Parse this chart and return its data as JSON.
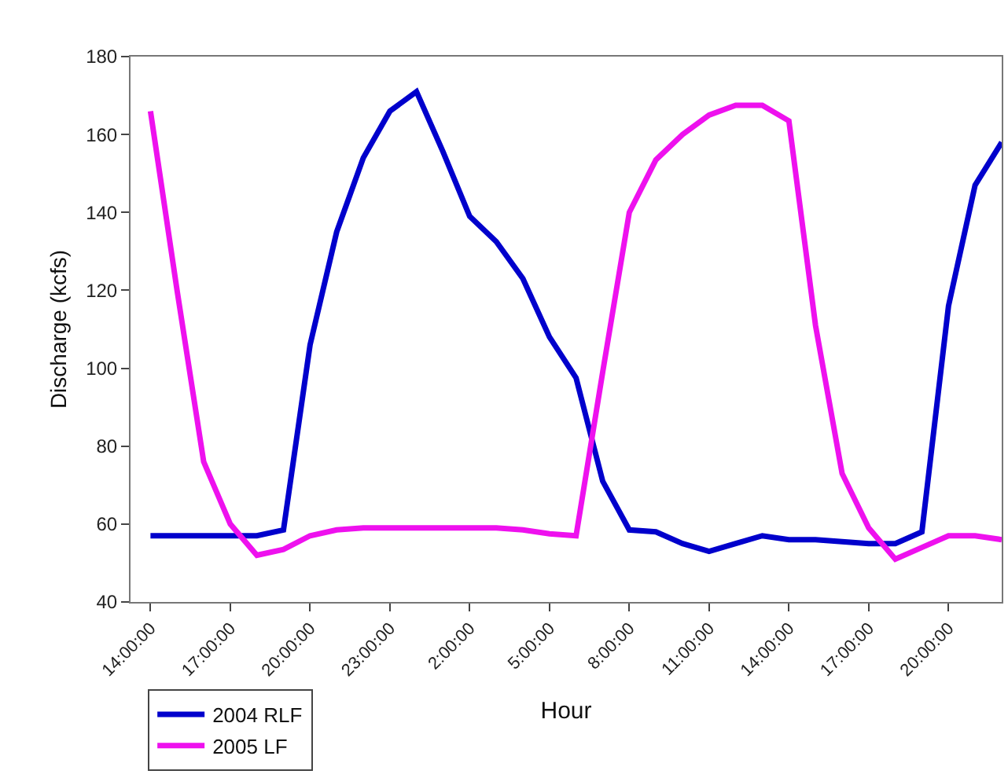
{
  "chart_data": {
    "type": "line",
    "xlabel": "Hour",
    "ylabel": "Discharge (kcfs)",
    "categories": [
      "14:00:00",
      null,
      null,
      "17:00:00",
      null,
      null,
      "20:00:00",
      null,
      null,
      "23:00:00",
      null,
      null,
      "2:00:00",
      null,
      null,
      "5:00:00",
      null,
      null,
      "8:00:00",
      null,
      null,
      "11:00:00",
      null,
      null,
      "14:00:00",
      null,
      null,
      "17:00:00",
      null,
      null,
      "20:00:00",
      null,
      null
    ],
    "series": [
      {
        "name": "2004 RLF",
        "color": "#0000cc",
        "values": [
          57,
          57,
          57,
          57,
          57,
          58.5,
          106,
          135,
          154,
          166,
          171,
          155.5,
          139,
          132.5,
          123,
          108,
          97.5,
          71,
          58.5,
          58,
          55,
          53,
          55,
          57,
          56,
          56,
          55.5,
          55,
          55,
          58,
          116,
          147,
          158
        ]
      },
      {
        "name": "2005 LF",
        "color": "#ee11ee",
        "values": [
          166,
          120,
          76,
          60,
          52,
          53.5,
          57,
          58.5,
          59,
          59,
          59,
          59,
          59,
          59,
          58.5,
          57.5,
          57,
          99,
          140,
          153.5,
          160,
          165,
          167.5,
          167.5,
          163.5,
          111,
          73,
          59,
          51,
          54,
          57,
          57,
          56
        ]
      }
    ],
    "ylim": [
      40,
      180
    ],
    "yticks": [
      40,
      60,
      80,
      100,
      120,
      140,
      160,
      180
    ],
    "legend": "bottom left",
    "marker": "none",
    "line_style": "solid"
  }
}
